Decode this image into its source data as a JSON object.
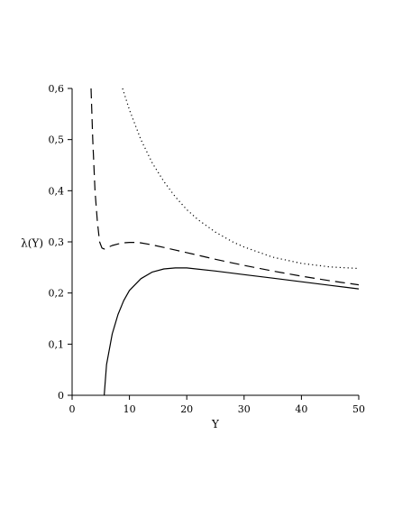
{
  "chart_data": {
    "type": "line",
    "title": "",
    "xlabel": "Y",
    "ylabel": "λ(Y)",
    "xlim": [
      0,
      50
    ],
    "ylim": [
      0,
      0.6
    ],
    "x_ticks": [
      0,
      10,
      20,
      30,
      40,
      50
    ],
    "x_tick_labels": [
      "0",
      "10",
      "20",
      "30",
      "40",
      "50"
    ],
    "y_ticks": [
      0,
      0.1,
      0.2,
      0.3,
      0.4,
      0.5,
      0.6
    ],
    "y_tick_labels": [
      "0",
      "0,1",
      "0,2",
      "0,3",
      "0,4",
      "0,5",
      "0,6"
    ],
    "grid": false,
    "legend": "none",
    "series": [
      {
        "style": "solid",
        "color": "#000000",
        "x": [
          5.6,
          6,
          7,
          8,
          9,
          10,
          12,
          14,
          16,
          18,
          20,
          25,
          30,
          35,
          40,
          45,
          50
        ],
        "y": [
          0,
          0.06,
          0.12,
          0.158,
          0.185,
          0.205,
          0.228,
          0.241,
          0.247,
          0.249,
          0.249,
          0.243,
          0.236,
          0.229,
          0.222,
          0.215,
          0.208
        ]
      },
      {
        "style": "dashed",
        "color": "#000000",
        "x": [
          3.3,
          3.6,
          4.0,
          4.4,
          4.8,
          5.2,
          5.6,
          6,
          7,
          8,
          9,
          10,
          11,
          12,
          14,
          16,
          18,
          20,
          25,
          30,
          35,
          40,
          45,
          50
        ],
        "y": [
          0.6,
          0.5,
          0.4,
          0.34,
          0.3,
          0.288,
          0.286,
          0.288,
          0.293,
          0.296,
          0.298,
          0.299,
          0.299,
          0.298,
          0.294,
          0.289,
          0.284,
          0.279,
          0.266,
          0.254,
          0.243,
          0.233,
          0.224,
          0.216
        ]
      },
      {
        "style": "dotted",
        "color": "#000000",
        "x": [
          8.8,
          10,
          12,
          14,
          16,
          18,
          20,
          22,
          25,
          28,
          30,
          35,
          40,
          45,
          50
        ],
        "y": [
          0.6,
          0.558,
          0.5,
          0.454,
          0.418,
          0.388,
          0.363,
          0.343,
          0.319,
          0.3,
          0.29,
          0.27,
          0.258,
          0.251,
          0.248
        ]
      }
    ]
  }
}
